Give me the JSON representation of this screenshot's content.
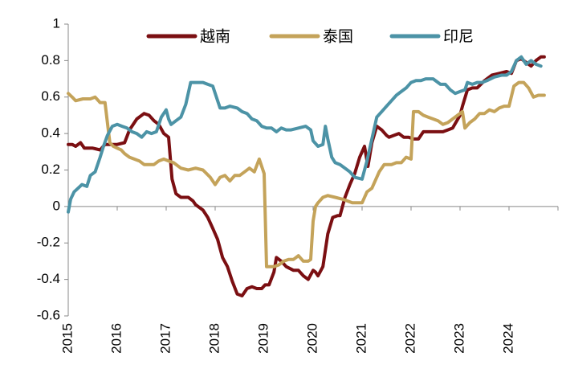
{
  "chart_data": {
    "type": "line",
    "title": "",
    "xlabel": "",
    "ylabel": "",
    "xlim": [
      2015,
      2025
    ],
    "ylim": [
      -0.6,
      1
    ],
    "x_ticks": [
      "2015",
      "2016",
      "2017",
      "2018",
      "2019",
      "2020",
      "2021",
      "2022",
      "2023",
      "2024"
    ],
    "y_ticks": [
      "1",
      "0.8",
      "0.6",
      "0.4",
      "0.2",
      "0",
      "-0.2",
      "-0.4",
      "-0.6"
    ],
    "grid": false,
    "legend_position": "top",
    "series": [
      {
        "name": "越南",
        "color": "#7B0F12",
        "points": [
          [
            2015.0,
            0.34
          ],
          [
            2015.08,
            0.34
          ],
          [
            2015.15,
            0.33
          ],
          [
            2015.25,
            0.35
          ],
          [
            2015.33,
            0.32
          ],
          [
            2015.5,
            0.32
          ],
          [
            2015.65,
            0.31
          ],
          [
            2015.75,
            0.34
          ],
          [
            2015.85,
            0.34
          ],
          [
            2016.0,
            0.34
          ],
          [
            2016.15,
            0.35
          ],
          [
            2016.25,
            0.42
          ],
          [
            2016.4,
            0.48
          ],
          [
            2016.55,
            0.51
          ],
          [
            2016.65,
            0.5
          ],
          [
            2016.75,
            0.47
          ],
          [
            2016.85,
            0.45
          ],
          [
            2016.95,
            0.4
          ],
          [
            2017.05,
            0.38
          ],
          [
            2017.12,
            0.15
          ],
          [
            2017.2,
            0.07
          ],
          [
            2017.3,
            0.05
          ],
          [
            2017.45,
            0.05
          ],
          [
            2017.55,
            0.03
          ],
          [
            2017.6,
            0.01
          ],
          [
            2017.75,
            -0.02
          ],
          [
            2017.85,
            -0.06
          ],
          [
            2017.95,
            -0.12
          ],
          [
            2018.05,
            -0.18
          ],
          [
            2018.15,
            -0.28
          ],
          [
            2018.25,
            -0.33
          ],
          [
            2018.35,
            -0.41
          ],
          [
            2018.45,
            -0.48
          ],
          [
            2018.55,
            -0.49
          ],
          [
            2018.65,
            -0.45
          ],
          [
            2018.75,
            -0.44
          ],
          [
            2018.85,
            -0.45
          ],
          [
            2018.95,
            -0.45
          ],
          [
            2019.02,
            -0.43
          ],
          [
            2019.1,
            -0.43
          ],
          [
            2019.2,
            -0.36
          ],
          [
            2019.25,
            -0.28
          ],
          [
            2019.35,
            -0.3
          ],
          [
            2019.45,
            -0.33
          ],
          [
            2019.6,
            -0.35
          ],
          [
            2019.7,
            -0.35
          ],
          [
            2019.8,
            -0.38
          ],
          [
            2019.9,
            -0.4
          ],
          [
            2020.0,
            -0.35
          ],
          [
            2020.05,
            -0.36
          ],
          [
            2020.1,
            -0.38
          ],
          [
            2020.2,
            -0.33
          ],
          [
            2020.3,
            -0.15
          ],
          [
            2020.4,
            -0.06
          ],
          [
            2020.5,
            -0.05
          ],
          [
            2020.55,
            -0.05
          ],
          [
            2020.65,
            0.05
          ],
          [
            2020.75,
            0.12
          ],
          [
            2020.85,
            0.18
          ],
          [
            2020.95,
            0.27
          ],
          [
            2021.05,
            0.33
          ],
          [
            2021.12,
            0.22
          ],
          [
            2021.2,
            0.35
          ],
          [
            2021.3,
            0.44
          ],
          [
            2021.4,
            0.42
          ],
          [
            2021.5,
            0.39
          ],
          [
            2021.55,
            0.38
          ],
          [
            2021.65,
            0.39
          ],
          [
            2021.75,
            0.4
          ],
          [
            2021.85,
            0.38
          ],
          [
            2021.95,
            0.38
          ],
          [
            2022.05,
            0.37
          ],
          [
            2022.15,
            0.37
          ],
          [
            2022.25,
            0.41
          ],
          [
            2022.35,
            0.41
          ],
          [
            2022.5,
            0.41
          ],
          [
            2022.65,
            0.41
          ],
          [
            2022.75,
            0.42
          ],
          [
            2022.85,
            0.43
          ],
          [
            2023.0,
            0.5
          ],
          [
            2023.05,
            0.55
          ],
          [
            2023.15,
            0.64
          ],
          [
            2023.25,
            0.65
          ],
          [
            2023.35,
            0.65
          ],
          [
            2023.5,
            0.69
          ],
          [
            2023.65,
            0.72
          ],
          [
            2023.8,
            0.73
          ],
          [
            2023.95,
            0.74
          ],
          [
            2024.05,
            0.73
          ],
          [
            2024.15,
            0.8
          ],
          [
            2024.25,
            0.81
          ],
          [
            2024.35,
            0.79
          ],
          [
            2024.45,
            0.77
          ],
          [
            2024.55,
            0.8
          ],
          [
            2024.65,
            0.82
          ],
          [
            2024.72,
            0.82
          ]
        ]
      },
      {
        "name": "泰国",
        "color": "#C4A35A",
        "points": [
          [
            2015.0,
            0.62
          ],
          [
            2015.08,
            0.6
          ],
          [
            2015.15,
            0.58
          ],
          [
            2015.3,
            0.59
          ],
          [
            2015.45,
            0.59
          ],
          [
            2015.55,
            0.6
          ],
          [
            2015.65,
            0.57
          ],
          [
            2015.75,
            0.57
          ],
          [
            2015.85,
            0.35
          ],
          [
            2015.92,
            0.33
          ],
          [
            2016.0,
            0.32
          ],
          [
            2016.08,
            0.31
          ],
          [
            2016.15,
            0.29
          ],
          [
            2016.25,
            0.27
          ],
          [
            2016.35,
            0.26
          ],
          [
            2016.45,
            0.25
          ],
          [
            2016.55,
            0.23
          ],
          [
            2016.65,
            0.23
          ],
          [
            2016.75,
            0.23
          ],
          [
            2016.85,
            0.25
          ],
          [
            2016.95,
            0.26
          ],
          [
            2017.05,
            0.25
          ],
          [
            2017.15,
            0.24
          ],
          [
            2017.3,
            0.21
          ],
          [
            2017.45,
            0.2
          ],
          [
            2017.6,
            0.21
          ],
          [
            2017.75,
            0.2
          ],
          [
            2017.9,
            0.16
          ],
          [
            2018.0,
            0.12
          ],
          [
            2018.1,
            0.16
          ],
          [
            2018.2,
            0.17
          ],
          [
            2018.3,
            0.14
          ],
          [
            2018.4,
            0.17
          ],
          [
            2018.5,
            0.17
          ],
          [
            2018.6,
            0.19
          ],
          [
            2018.7,
            0.21
          ],
          [
            2018.8,
            0.19
          ],
          [
            2018.9,
            0.26
          ],
          [
            2019.0,
            0.18
          ],
          [
            2019.05,
            -0.33
          ],
          [
            2019.12,
            -0.33
          ],
          [
            2019.2,
            -0.33
          ],
          [
            2019.3,
            -0.32
          ],
          [
            2019.4,
            -0.3
          ],
          [
            2019.5,
            -0.29
          ],
          [
            2019.6,
            -0.29
          ],
          [
            2019.7,
            -0.27
          ],
          [
            2019.8,
            -0.3
          ],
          [
            2019.9,
            -0.3
          ],
          [
            2019.95,
            -0.29
          ],
          [
            2020.0,
            -0.08
          ],
          [
            2020.05,
            0.0
          ],
          [
            2020.1,
            0.02
          ],
          [
            2020.2,
            0.05
          ],
          [
            2020.3,
            0.06
          ],
          [
            2020.45,
            0.05
          ],
          [
            2020.6,
            0.04
          ],
          [
            2020.8,
            0.02
          ],
          [
            2021.0,
            0.02
          ],
          [
            2021.1,
            0.08
          ],
          [
            2021.2,
            0.1
          ],
          [
            2021.35,
            0.19
          ],
          [
            2021.45,
            0.23
          ],
          [
            2021.6,
            0.23
          ],
          [
            2021.7,
            0.24
          ],
          [
            2021.8,
            0.24
          ],
          [
            2021.9,
            0.27
          ],
          [
            2022.0,
            0.26
          ],
          [
            2022.05,
            0.52
          ],
          [
            2022.15,
            0.52
          ],
          [
            2022.25,
            0.5
          ],
          [
            2022.35,
            0.49
          ],
          [
            2022.45,
            0.48
          ],
          [
            2022.55,
            0.47
          ],
          [
            2022.65,
            0.45
          ],
          [
            2022.75,
            0.46
          ],
          [
            2022.85,
            0.48
          ],
          [
            2022.95,
            0.5
          ],
          [
            2023.05,
            0.52
          ],
          [
            2023.1,
            0.43
          ],
          [
            2023.2,
            0.46
          ],
          [
            2023.3,
            0.48
          ],
          [
            2023.4,
            0.51
          ],
          [
            2023.5,
            0.51
          ],
          [
            2023.6,
            0.53
          ],
          [
            2023.7,
            0.52
          ],
          [
            2023.8,
            0.54
          ],
          [
            2023.9,
            0.55
          ],
          [
            2024.0,
            0.55
          ],
          [
            2024.1,
            0.66
          ],
          [
            2024.2,
            0.68
          ],
          [
            2024.3,
            0.68
          ],
          [
            2024.4,
            0.65
          ],
          [
            2024.5,
            0.6
          ],
          [
            2024.6,
            0.61
          ],
          [
            2024.72,
            0.61
          ]
        ]
      },
      {
        "name": "印尼",
        "color": "#4C93A6",
        "points": [
          [
            2015.0,
            -0.03
          ],
          [
            2015.05,
            0.04
          ],
          [
            2015.12,
            0.08
          ],
          [
            2015.2,
            0.1
          ],
          [
            2015.28,
            0.12
          ],
          [
            2015.38,
            0.11
          ],
          [
            2015.45,
            0.17
          ],
          [
            2015.55,
            0.19
          ],
          [
            2015.65,
            0.27
          ],
          [
            2015.72,
            0.33
          ],
          [
            2015.8,
            0.39
          ],
          [
            2015.9,
            0.44
          ],
          [
            2016.0,
            0.45
          ],
          [
            2016.1,
            0.44
          ],
          [
            2016.2,
            0.43
          ],
          [
            2016.3,
            0.41
          ],
          [
            2016.4,
            0.4
          ],
          [
            2016.5,
            0.38
          ],
          [
            2016.6,
            0.41
          ],
          [
            2016.7,
            0.4
          ],
          [
            2016.8,
            0.41
          ],
          [
            2016.9,
            0.49
          ],
          [
            2017.0,
            0.53
          ],
          [
            2017.05,
            0.48
          ],
          [
            2017.1,
            0.45
          ],
          [
            2017.2,
            0.47
          ],
          [
            2017.3,
            0.49
          ],
          [
            2017.4,
            0.56
          ],
          [
            2017.5,
            0.68
          ],
          [
            2017.6,
            0.68
          ],
          [
            2017.75,
            0.68
          ],
          [
            2017.85,
            0.67
          ],
          [
            2017.95,
            0.66
          ],
          [
            2018.1,
            0.54
          ],
          [
            2018.2,
            0.54
          ],
          [
            2018.3,
            0.55
          ],
          [
            2018.45,
            0.54
          ],
          [
            2018.55,
            0.52
          ],
          [
            2018.65,
            0.51
          ],
          [
            2018.75,
            0.48
          ],
          [
            2018.85,
            0.47
          ],
          [
            2018.95,
            0.44
          ],
          [
            2019.05,
            0.43
          ],
          [
            2019.15,
            0.43
          ],
          [
            2019.25,
            0.41
          ],
          [
            2019.35,
            0.43
          ],
          [
            2019.45,
            0.42
          ],
          [
            2019.55,
            0.42
          ],
          [
            2019.7,
            0.43
          ],
          [
            2019.85,
            0.44
          ],
          [
            2019.95,
            0.42
          ],
          [
            2020.0,
            0.36
          ],
          [
            2020.1,
            0.33
          ],
          [
            2020.2,
            0.34
          ],
          [
            2020.25,
            0.44
          ],
          [
            2020.3,
            0.37
          ],
          [
            2020.38,
            0.27
          ],
          [
            2020.45,
            0.24
          ],
          [
            2020.55,
            0.23
          ],
          [
            2020.65,
            0.21
          ],
          [
            2020.75,
            0.19
          ],
          [
            2020.85,
            0.16
          ],
          [
            2021.0,
            0.15
          ],
          [
            2021.1,
            0.25
          ],
          [
            2021.2,
            0.37
          ],
          [
            2021.3,
            0.49
          ],
          [
            2021.4,
            0.52
          ],
          [
            2021.5,
            0.55
          ],
          [
            2021.6,
            0.58
          ],
          [
            2021.7,
            0.61
          ],
          [
            2021.8,
            0.63
          ],
          [
            2021.9,
            0.65
          ],
          [
            2022.0,
            0.68
          ],
          [
            2022.1,
            0.69
          ],
          [
            2022.2,
            0.69
          ],
          [
            2022.3,
            0.7
          ],
          [
            2022.45,
            0.7
          ],
          [
            2022.6,
            0.67
          ],
          [
            2022.7,
            0.67
          ],
          [
            2022.8,
            0.64
          ],
          [
            2022.9,
            0.62
          ],
          [
            2023.0,
            0.63
          ],
          [
            2023.1,
            0.64
          ],
          [
            2023.15,
            0.68
          ],
          [
            2023.25,
            0.67
          ],
          [
            2023.35,
            0.68
          ],
          [
            2023.45,
            0.68
          ],
          [
            2023.55,
            0.69
          ],
          [
            2023.7,
            0.71
          ],
          [
            2023.85,
            0.72
          ],
          [
            2023.95,
            0.72
          ],
          [
            2024.05,
            0.74
          ],
          [
            2024.15,
            0.8
          ],
          [
            2024.25,
            0.82
          ],
          [
            2024.35,
            0.78
          ],
          [
            2024.45,
            0.8
          ],
          [
            2024.55,
            0.78
          ],
          [
            2024.65,
            0.77
          ]
        ]
      }
    ]
  }
}
